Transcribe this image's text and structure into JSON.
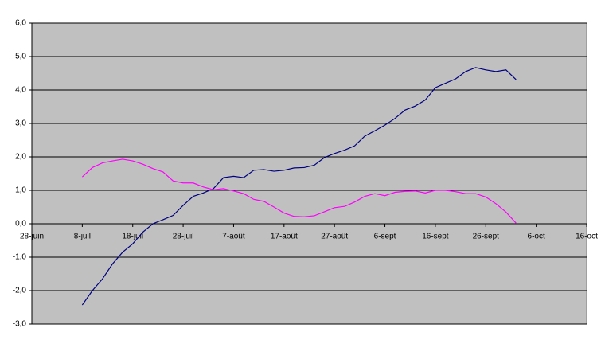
{
  "chart_data": {
    "type": "line",
    "x": [
      10,
      12,
      14,
      16,
      18,
      20,
      22,
      24,
      26,
      28,
      30,
      32,
      34,
      36,
      38,
      40,
      42,
      44,
      46,
      48,
      50,
      52,
      54,
      56,
      58,
      60,
      62,
      64,
      66,
      68,
      70,
      72,
      74,
      76,
      78,
      80,
      82,
      84,
      86,
      88,
      90,
      92,
      94,
      96
    ],
    "series": [
      {
        "color": "#000080",
        "values": [
          -2.43,
          -2.0,
          -1.65,
          -1.2,
          -0.85,
          -0.6,
          -0.25,
          0.0,
          0.12,
          0.25,
          0.55,
          0.82,
          0.92,
          1.05,
          1.38,
          1.42,
          1.38,
          1.6,
          1.62,
          1.57,
          1.6,
          1.67,
          1.68,
          1.75,
          1.98,
          2.1,
          2.2,
          2.33,
          2.62,
          2.78,
          2.95,
          3.15,
          3.4,
          3.52,
          3.7,
          4.07,
          4.2,
          4.33,
          4.55,
          4.67,
          4.6,
          4.55,
          4.6,
          4.31
        ]
      },
      {
        "color": "#ff00ff",
        "values": [
          1.4,
          1.68,
          1.82,
          1.88,
          1.93,
          1.88,
          1.78,
          1.65,
          1.55,
          1.28,
          1.22,
          1.22,
          1.1,
          1.02,
          1.05,
          0.98,
          0.9,
          0.73,
          0.67,
          0.5,
          0.32,
          0.22,
          0.21,
          0.24,
          0.36,
          0.48,
          0.52,
          0.65,
          0.82,
          0.9,
          0.84,
          0.94,
          0.97,
          0.98,
          0.92,
          1.0,
          1.0,
          0.96,
          0.9,
          0.9,
          0.8,
          0.6,
          0.35,
          0.02
        ]
      }
    ],
    "xlim": [
      0,
      110
    ],
    "xticks": [
      {
        "value": 0,
        "label": "28-juin"
      },
      {
        "value": 10,
        "label": "8-juil"
      },
      {
        "value": 20,
        "label": "18-juil"
      },
      {
        "value": 30,
        "label": "28-juil"
      },
      {
        "value": 40,
        "label": "7-août"
      },
      {
        "value": 50,
        "label": "17-août"
      },
      {
        "value": 60,
        "label": "27-août"
      },
      {
        "value": 70,
        "label": "6-sept"
      },
      {
        "value": 80,
        "label": "16-sept"
      },
      {
        "value": 90,
        "label": "26-sept"
      },
      {
        "value": 100,
        "label": "6-oct"
      },
      {
        "value": 110,
        "label": "16-oct"
      }
    ],
    "ylim": [
      -3,
      6
    ],
    "yticks": [
      {
        "value": -3,
        "label": "-3,0"
      },
      {
        "value": -2,
        "label": "-2,0"
      },
      {
        "value": -1,
        "label": "-1,0"
      },
      {
        "value": 0,
        "label": "0,0"
      },
      {
        "value": 1,
        "label": "1,0"
      },
      {
        "value": 2,
        "label": "2,0"
      },
      {
        "value": 3,
        "label": "3,0"
      },
      {
        "value": 4,
        "label": "4,0"
      },
      {
        "value": 5,
        "label": "5,0"
      },
      {
        "value": 6,
        "label": "6,0"
      }
    ],
    "grid": true
  }
}
